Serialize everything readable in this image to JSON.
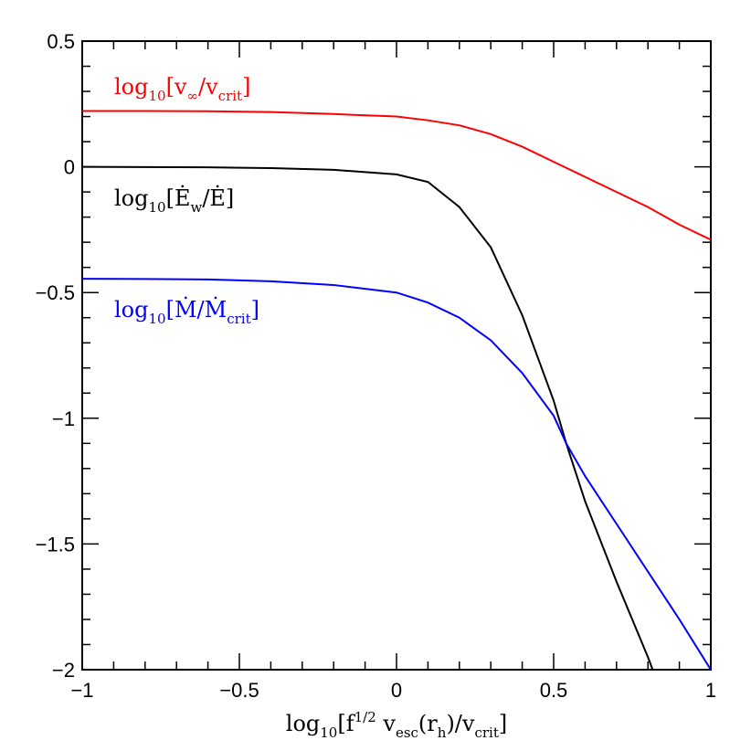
{
  "chart_data": {
    "type": "line",
    "xlim": [
      -1,
      1
    ],
    "ylim": [
      -2,
      0.5
    ],
    "xticks": [
      {
        "value": -1,
        "label": "−1"
      },
      {
        "value": -0.5,
        "label": "−0.5"
      },
      0,
      0.5,
      1
    ],
    "yticks": [
      {
        "value": -2,
        "label": "−2"
      },
      {
        "value": -1.5,
        "label": "−1.5"
      },
      {
        "value": -1,
        "label": "−1"
      },
      {
        "value": -0.5,
        "label": "−0.5"
      },
      0,
      0.5
    ],
    "xlabel": [
      {
        "t": "log"
      },
      {
        "sub": "10"
      },
      {
        "t": "[f"
      },
      {
        "sup": "1/2"
      },
      {
        "t": " v"
      },
      {
        "sub": "esc"
      },
      {
        "t": "(r"
      },
      {
        "sub": "h"
      },
      {
        "t": ")/v"
      },
      {
        "sub": "crit"
      },
      {
        "t": "]"
      }
    ],
    "series": [
      {
        "name": [
          {
            "t": "log"
          },
          {
            "sub": "10"
          },
          {
            "t": "[v"
          },
          {
            "sub": "∞"
          },
          {
            "t": "/v"
          },
          {
            "sub": "crit"
          },
          {
            "t": "]"
          }
        ],
        "color": "#ff0000",
        "x": [
          -1,
          -0.8,
          -0.6,
          -0.4,
          -0.2,
          0,
          0.1,
          0.2,
          0.3,
          0.4,
          0.5,
          0.6,
          0.7,
          0.8,
          0.9,
          1
        ],
        "values": [
          0.222,
          0.222,
          0.221,
          0.218,
          0.21,
          0.2,
          0.185,
          0.165,
          0.13,
          0.08,
          0.02,
          -0.04,
          -0.1,
          -0.16,
          -0.23,
          -0.29
        ]
      },
      {
        "name": [
          {
            "t": "log"
          },
          {
            "sub": "10"
          },
          {
            "t": "[Ė"
          },
          {
            "sub": "w"
          },
          {
            "t": "/Ė]"
          }
        ],
        "color": "#000000",
        "x": [
          -1,
          -0.8,
          -0.6,
          -0.4,
          -0.2,
          0,
          0.1,
          0.2,
          0.3,
          0.4,
          0.5,
          0.54,
          0.6,
          0.7,
          0.8,
          0.815
        ],
        "values": [
          0,
          -0.001,
          -0.002,
          -0.005,
          -0.012,
          -0.03,
          -0.06,
          -0.16,
          -0.32,
          -0.59,
          -0.93,
          -1.1,
          -1.33,
          -1.65,
          -1.95,
          -2
        ]
      },
      {
        "name": [
          {
            "t": "log"
          },
          {
            "sub": "10"
          },
          {
            "t": "[Ṁ/Ṁ"
          },
          {
            "sub": "crit"
          },
          {
            "t": "]"
          }
        ],
        "color": "#0000ff",
        "x": [
          -1,
          -0.8,
          -0.6,
          -0.4,
          -0.2,
          0,
          0.1,
          0.2,
          0.3,
          0.4,
          0.5,
          0.54,
          0.6,
          0.7,
          0.8,
          0.9,
          1
        ],
        "values": [
          -0.445,
          -0.446,
          -0.448,
          -0.455,
          -0.47,
          -0.5,
          -0.54,
          -0.6,
          -0.69,
          -0.82,
          -0.99,
          -1.1,
          -1.23,
          -1.42,
          -1.61,
          -1.8,
          -2
        ]
      }
    ]
  }
}
